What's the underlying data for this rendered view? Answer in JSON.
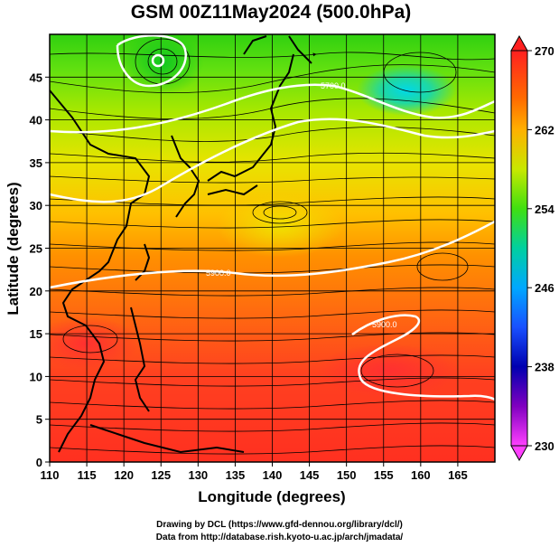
{
  "title": "GSM 00Z11May2024 (500.0hPa)",
  "x_axis": {
    "label": "Longitude (degrees)",
    "range": [
      110,
      170
    ],
    "ticks": [
      "110",
      "115",
      "120",
      "125",
      "130",
      "135",
      "140",
      "145",
      "150",
      "155",
      "160",
      "165"
    ]
  },
  "y_axis": {
    "label": "Latitude (degrees)",
    "range": [
      0,
      50
    ],
    "ticks": [
      "0",
      "5",
      "10",
      "15",
      "20",
      "25",
      "30",
      "35",
      "40",
      "45"
    ]
  },
  "colorbar": {
    "min": 230,
    "max": 270,
    "tick_labels": [
      "270",
      "262",
      "254",
      "246",
      "238",
      "230"
    ],
    "colors": [
      "#ff2020",
      "#ff6a00",
      "#ffb000",
      "#c8e800",
      "#40e010",
      "#00d0a0",
      "#00a8ff",
      "#1850ff",
      "#0000b0",
      "#8000c0",
      "#ff40ff"
    ]
  },
  "contour_labels": [
    {
      "text": "5700.0"
    },
    {
      "text": "5900.0"
    },
    {
      "text": "5900.0"
    }
  ],
  "credits": {
    "line1": "Drawing by DCL (https://www.gfd-dennou.org/library/dcl/)",
    "line2": "Data from http://database.rish.kyoto-u.ac.jp/arch/jmadata/"
  }
}
